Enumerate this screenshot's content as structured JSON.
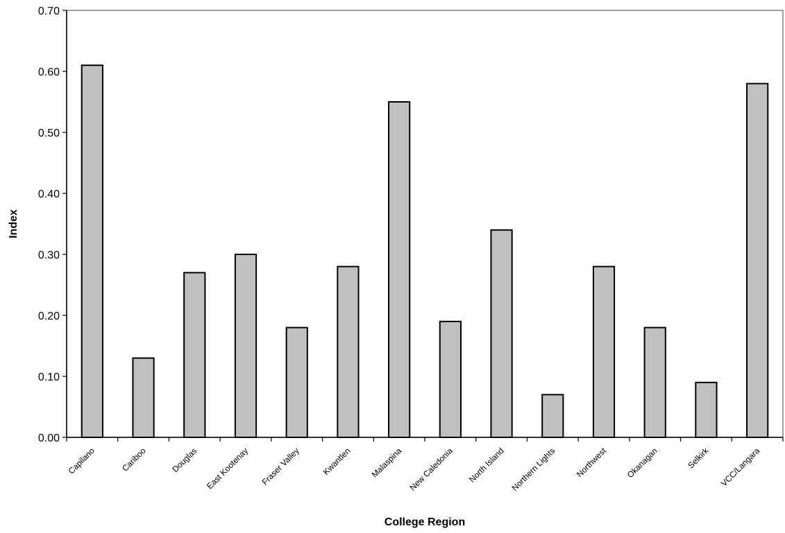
{
  "chart_data": {
    "type": "bar",
    "title": "",
    "xlabel": "College Region",
    "ylabel": "Index",
    "ylim": [
      0,
      0.7
    ],
    "yticks": [
      "0.00",
      "0.10",
      "0.20",
      "0.30",
      "0.40",
      "0.50",
      "0.60",
      "0.70"
    ],
    "grid": false,
    "legend": "none",
    "bar_color": "#c0c0c0",
    "categories": [
      "Capilano",
      "Cariboo",
      "Douglas",
      "East Kootenay",
      "Fraser Valley",
      "Kwantlen",
      "Malaspina",
      "New Caledonia",
      "North Island",
      "Northern Lights",
      "Northwest",
      "Okanagan",
      "Selkirk",
      "VCC/Langara"
    ],
    "values": [
      0.61,
      0.13,
      0.27,
      0.3,
      0.18,
      0.28,
      0.55,
      0.19,
      0.34,
      0.07,
      0.28,
      0.18,
      0.09,
      0.58
    ]
  }
}
